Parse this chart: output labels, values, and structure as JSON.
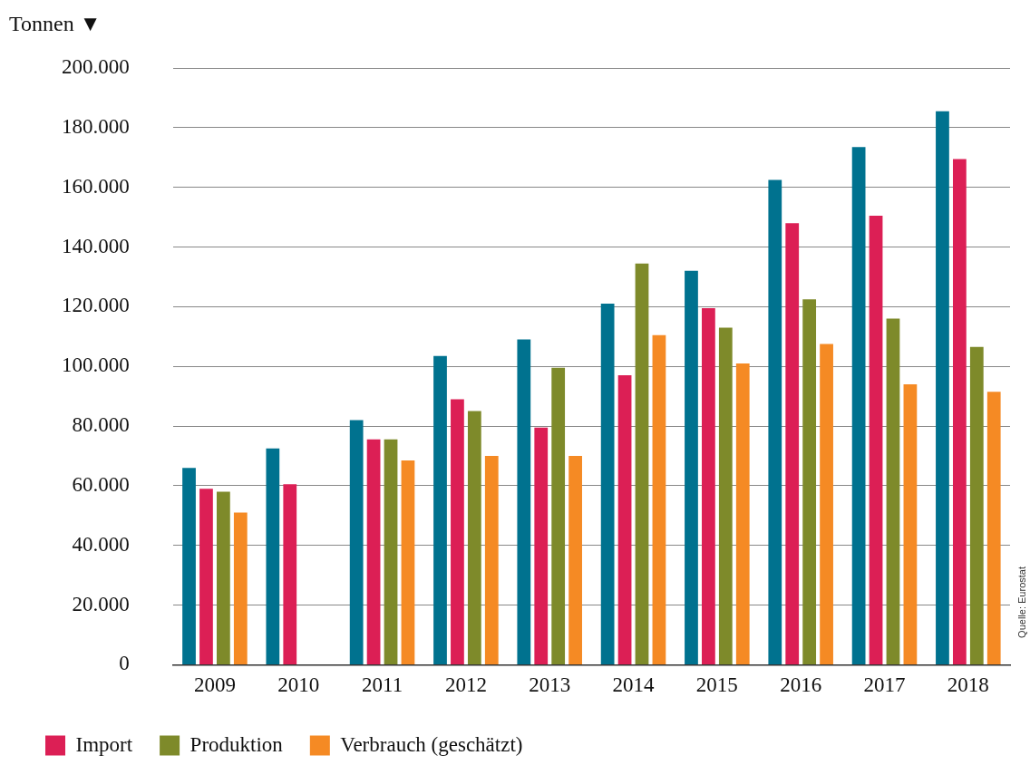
{
  "chart_data": {
    "type": "bar",
    "ylabel": "Tonnen ▼",
    "categories": [
      "2009",
      "2010",
      "2011",
      "2012",
      "2013",
      "2014",
      "2015",
      "2016",
      "2017",
      "2018"
    ],
    "series": [
      {
        "color": "#00728f",
        "values": [
          66000,
          72500,
          82000,
          103500,
          109000,
          121000,
          132000,
          162500,
          173500,
          185500
        ]
      },
      {
        "name": "Import",
        "color": "#dc1f55",
        "values": [
          59000,
          60500,
          75500,
          89000,
          79500,
          97000,
          119500,
          148000,
          150500,
          169500
        ]
      },
      {
        "name": "Produktion",
        "color": "#7e8a2a",
        "values": [
          58000,
          null,
          75500,
          85000,
          99500,
          134500,
          113000,
          122500,
          116000,
          106500
        ]
      },
      {
        "name": "Verbrauch (geschätzt)",
        "color": "#f58a24",
        "values": [
          51000,
          null,
          68500,
          70000,
          70000,
          110500,
          101000,
          107500,
          94000,
          91500
        ]
      }
    ],
    "ylim": [
      0,
      200000
    ],
    "yticks": [
      0,
      {
        "value": 20000,
        "label": "20.000"
      },
      {
        "value": 40000,
        "label": "40.000"
      },
      {
        "value": 60000,
        "label": "60.000"
      },
      {
        "value": 80000,
        "label": "80.000"
      },
      {
        "value": 100000,
        "label": "100.000"
      },
      {
        "value": 120000,
        "label": "120.000"
      },
      {
        "value": 140000,
        "label": "140.000"
      },
      {
        "value": 160000,
        "label": "160.000"
      },
      {
        "value": 180000,
        "label": "180.000"
      },
      {
        "value": 200000,
        "label": "200.000"
      }
    ],
    "grid": "y",
    "legend": "bottom left",
    "annotations": [
      "Quelle: Eurostat"
    ]
  }
}
